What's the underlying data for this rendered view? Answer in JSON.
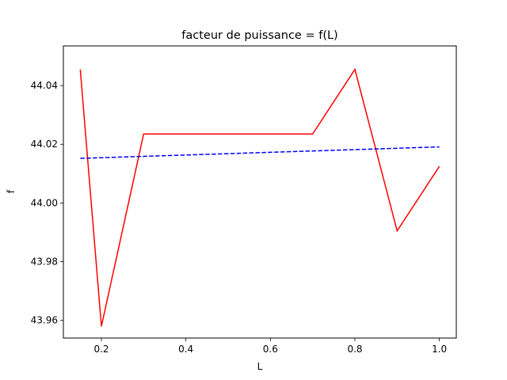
{
  "chart_data": {
    "type": "line",
    "title": "facteur de puissance = f(L)",
    "xlabel": "L",
    "ylabel": "f",
    "xlim": [
      0.11,
      1.04
    ],
    "ylim": [
      43.954,
      44.0535
    ],
    "xticks": [
      0.2,
      0.4,
      0.6,
      0.8,
      1.0
    ],
    "xtick_labels": [
      "0.2",
      "0.4",
      "0.6",
      "0.8",
      "1.0"
    ],
    "yticks": [
      43.96,
      43.98,
      44.0,
      44.02,
      44.04
    ],
    "ytick_labels": [
      "43.96",
      "43.98",
      "44.00",
      "44.02",
      "44.04"
    ],
    "grid": false,
    "series": [
      {
        "color": "#ff0000",
        "style": "solid",
        "x": [
          0.15,
          0.2,
          0.3,
          0.4,
          0.5,
          0.6,
          0.7,
          0.8,
          0.9,
          1.0
        ],
        "y": [
          44.0455,
          43.958,
          44.0235,
          44.0235,
          44.0235,
          44.0235,
          44.0235,
          44.0455,
          43.9905,
          44.0125
        ]
      },
      {
        "color": "#0000ff",
        "style": "dashed",
        "x": [
          0.15,
          1.0
        ],
        "y": [
          44.0152,
          44.0191
        ]
      }
    ]
  }
}
